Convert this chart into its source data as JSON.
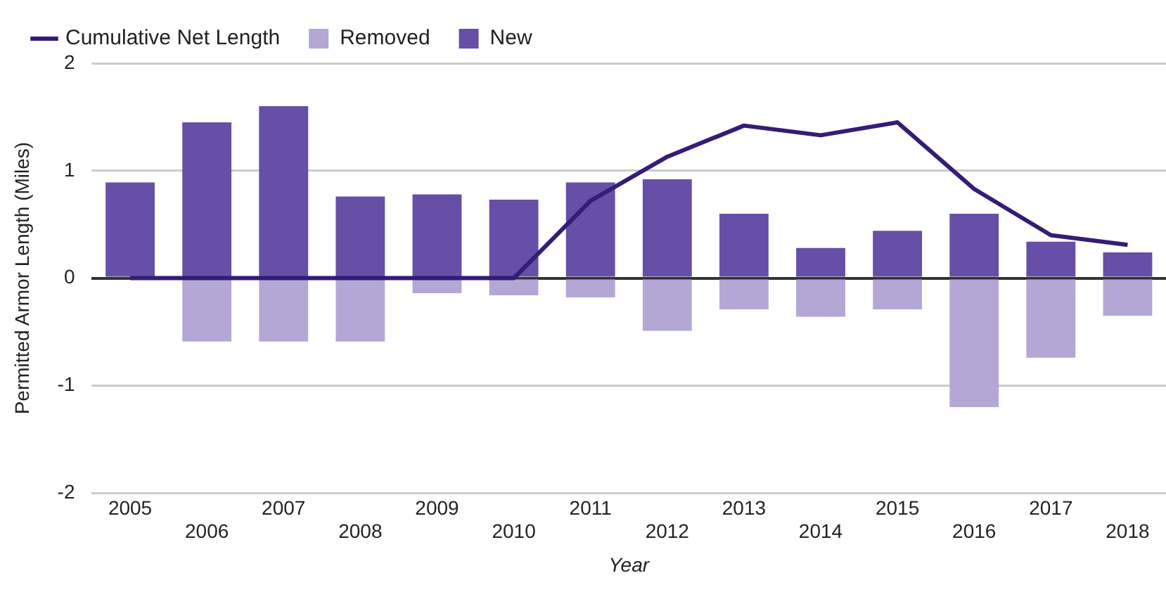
{
  "chart_data": {
    "type": "bar",
    "stacked": true,
    "xlabel": "Year",
    "ylabel": "Permitted Armor Length (Miles)",
    "categories": [
      "2005",
      "2006",
      "2007",
      "2008",
      "2009",
      "2010",
      "2011",
      "2012",
      "2013",
      "2014",
      "2015",
      "2016",
      "2017",
      "2018"
    ],
    "series": [
      {
        "name": "Cumulative Net Length",
        "type": "line",
        "color": "#351c75",
        "values": [
          0,
          0,
          0,
          0,
          0,
          0,
          0.72,
          1.13,
          1.42,
          1.33,
          1.45,
          0.83,
          0.4,
          0.31
        ]
      },
      {
        "name": "Removed",
        "color": "#b4a7d6",
        "values": [
          0,
          -0.59,
          -0.59,
          -0.59,
          -0.14,
          -0.16,
          -0.18,
          -0.49,
          -0.29,
          -0.36,
          -0.29,
          -1.2,
          -0.74,
          -0.35
        ]
      },
      {
        "name": "New",
        "color": "#674ea7",
        "values": [
          0.89,
          1.45,
          1.6,
          0.76,
          0.78,
          0.73,
          0.89,
          0.92,
          0.6,
          0.28,
          0.44,
          0.6,
          0.34,
          0.24
        ]
      }
    ],
    "ylim": [
      -2,
      2
    ],
    "yticks": [
      -2,
      -1,
      0,
      1,
      2
    ],
    "grid": "y",
    "legend": "top left",
    "marker": "none"
  }
}
